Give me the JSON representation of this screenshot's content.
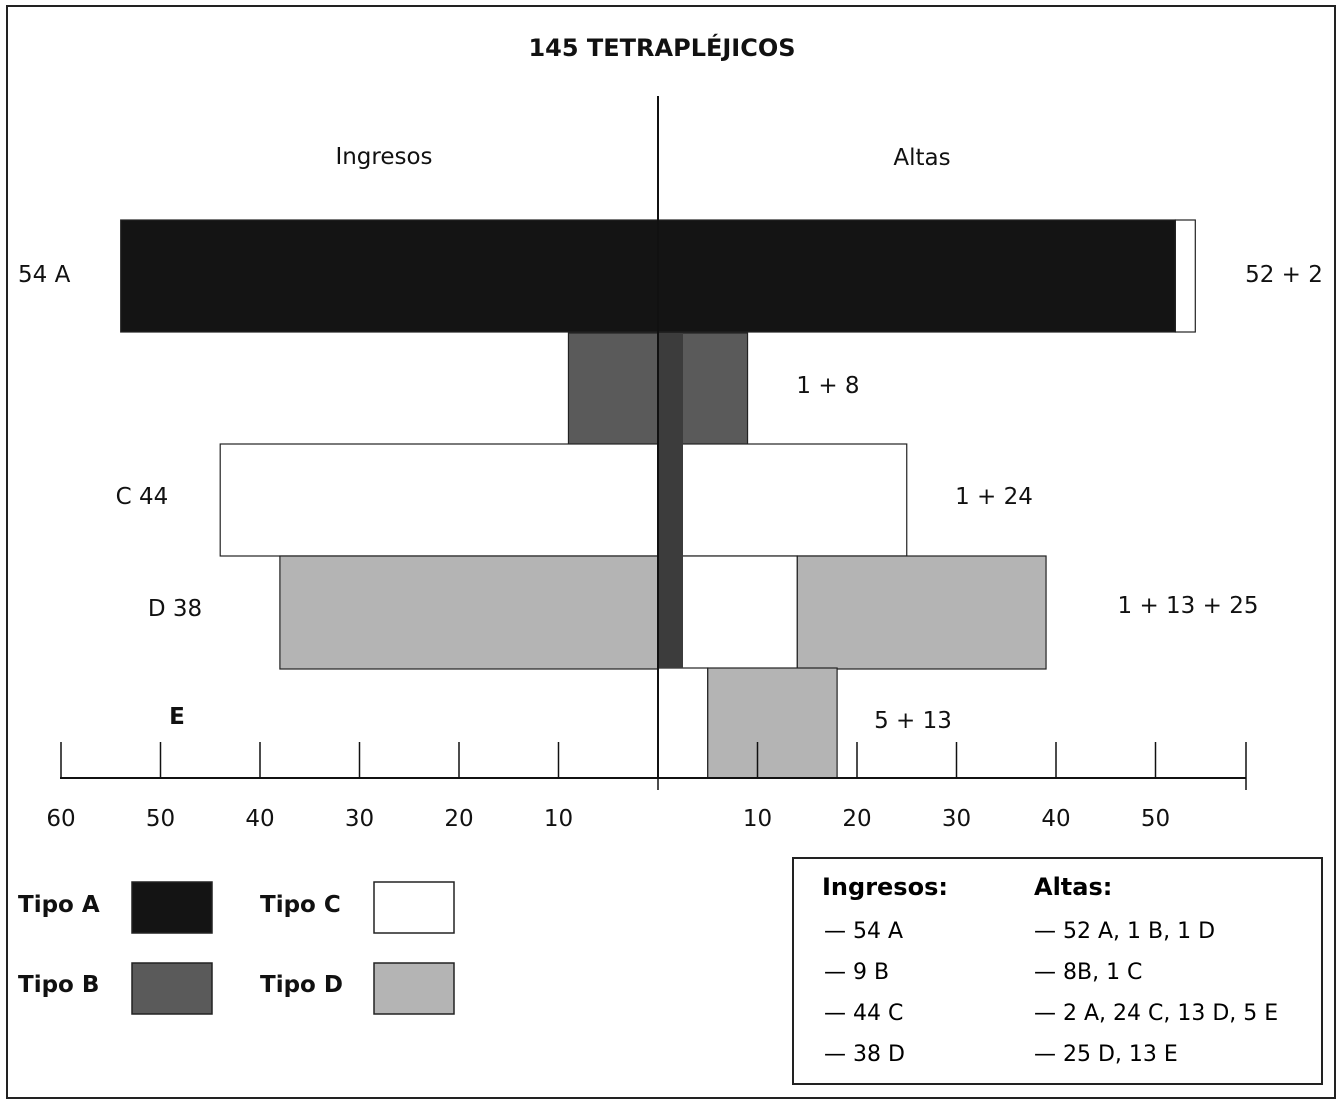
{
  "chart_data": {
    "type": "bar",
    "title": "145 TETRAPLÉJICOS",
    "left_header": "Ingresos",
    "right_header": "Altas",
    "x_ticks_left": [
      "60",
      "50",
      "40",
      "30",
      "20",
      "10"
    ],
    "x_ticks_right": [
      "10",
      "20",
      "30",
      "40",
      "50"
    ],
    "xlim": [
      -60,
      60
    ],
    "rows": [
      {
        "left_label": "54 A",
        "right_label": "52 + 2",
        "ingresos": [
          {
            "type": "A",
            "value": 54
          }
        ],
        "altas": [
          {
            "type": "A",
            "value": 52
          },
          {
            "type": "C",
            "value": 2
          }
        ]
      },
      {
        "left_label": "",
        "right_label": "1 + 8",
        "ingresos": [
          {
            "type": "B",
            "value": 9
          }
        ],
        "altas": [
          {
            "type": "A",
            "value": 1
          },
          {
            "type": "B",
            "value": 8
          }
        ]
      },
      {
        "left_label": "C 44",
        "right_label": "1 + 24",
        "ingresos": [
          {
            "type": "C",
            "value": 44
          }
        ],
        "altas": [
          {
            "type": "B",
            "value": 1
          },
          {
            "type": "C",
            "value": 24
          }
        ]
      },
      {
        "left_label": "D 38",
        "right_label": "1 + 13 + 25",
        "ingresos": [
          {
            "type": "D",
            "value": 38
          }
        ],
        "altas": [
          {
            "type": "A",
            "value": 1
          },
          {
            "type": "C",
            "value": 13
          },
          {
            "type": "D",
            "value": 25
          }
        ]
      },
      {
        "left_label": "E",
        "right_label": "5 + 13",
        "ingresos": [],
        "altas": [
          {
            "type": "C",
            "value": 5
          },
          {
            "type": "D",
            "value": 13
          }
        ]
      }
    ]
  },
  "legend": {
    "items": [
      {
        "label": "Tipo A",
        "color": "#141414"
      },
      {
        "label": "Tipo B",
        "color": "#5a5a5a"
      },
      {
        "label": "Tipo C",
        "color": "#ffffff"
      },
      {
        "label": "Tipo D",
        "color": "#b4b4b4"
      }
    ]
  },
  "summary": {
    "ingresos_header": "Ingresos:",
    "altas_header": "Altas:",
    "ingresos": [
      "— 54 A",
      "— 9 B",
      "— 44 C",
      "— 38 D"
    ],
    "altas": [
      "— 52 A, 1 B, 1 D",
      "— 8B, 1 C",
      "— 2 A, 24 C, 13 D, 5 E",
      "— 25 D, 13 E"
    ]
  }
}
